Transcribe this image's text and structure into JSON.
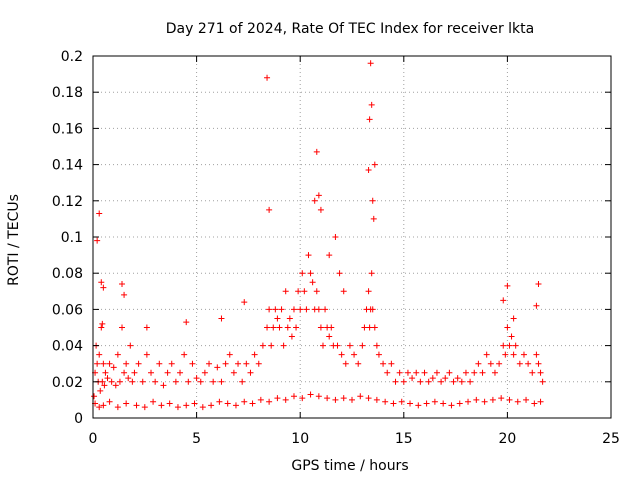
{
  "chart_data": {
    "type": "scatter",
    "title": "Day 271 of 2024, Rate Of TEC Index for receiver lkta",
    "xlabel": "GPS time / hours",
    "ylabel": "ROTI / TECUs",
    "xlim": [
      0,
      25
    ],
    "ylim": [
      0,
      0.2
    ],
    "xticks": [
      0,
      5,
      10,
      15,
      20,
      25
    ],
    "xtick_labels": [
      "0",
      "5",
      "10",
      "15",
      "20",
      "25"
    ],
    "yticks": [
      0,
      0.02,
      0.04,
      0.06,
      0.08,
      0.1,
      0.12,
      0.14,
      0.16,
      0.18,
      0.2
    ],
    "ytick_labels": [
      "0",
      "0.02",
      "0.04",
      "0.06",
      "0.08",
      "0.1",
      "0.12",
      "0.14",
      "0.16",
      "0.18",
      "0.2"
    ],
    "grid": true,
    "marker": "+",
    "color": "#ff0000",
    "series": [
      {
        "name": "ROTI",
        "x": [
          0.05,
          0.1,
          0.15,
          0.2,
          0.25,
          0.3,
          0.35,
          0.4,
          0.45,
          0.5,
          0.55,
          0.6,
          0.7,
          0.8,
          0.9,
          1.0,
          1.1,
          1.2,
          1.3,
          1.4,
          1.5,
          1.6,
          1.7,
          1.8,
          1.9,
          2.0,
          2.2,
          2.4,
          2.6,
          2.8,
          3.0,
          3.2,
          3.4,
          3.6,
          3.8,
          4.0,
          4.2,
          4.4,
          4.6,
          4.8,
          5.0,
          5.2,
          5.4,
          5.6,
          5.8,
          6.0,
          6.2,
          6.4,
          6.6,
          6.8,
          7.0,
          7.2,
          7.4,
          7.6,
          7.8,
          8.0,
          8.2,
          8.4,
          8.5,
          8.6,
          8.7,
          8.8,
          8.9,
          9.0,
          9.1,
          9.2,
          9.3,
          9.4,
          9.5,
          9.6,
          9.7,
          9.8,
          9.9,
          10.0,
          10.1,
          10.2,
          10.3,
          10.4,
          10.5,
          10.6,
          10.7,
          10.8,
          10.9,
          11.0,
          11.1,
          11.2,
          11.3,
          11.4,
          11.5,
          11.6,
          11.8,
          12.0,
          12.2,
          12.4,
          12.6,
          12.8,
          13.0,
          13.1,
          13.2,
          13.3,
          13.35,
          13.4,
          13.45,
          13.5,
          13.6,
          13.7,
          13.8,
          14.0,
          14.2,
          14.4,
          14.6,
          14.8,
          15.0,
          15.2,
          15.4,
          15.6,
          15.8,
          16.0,
          16.2,
          16.4,
          16.6,
          16.8,
          17.0,
          17.2,
          17.4,
          17.6,
          17.8,
          18.0,
          18.2,
          18.4,
          18.6,
          18.8,
          19.0,
          19.2,
          19.4,
          19.6,
          19.8,
          19.9,
          20.0,
          20.1,
          20.2,
          20.3,
          20.4,
          20.6,
          20.8,
          21.0,
          21.2,
          21.4,
          21.5,
          21.6,
          21.7,
          0.2,
          0.3,
          0.4,
          0.45,
          0.5,
          1.4,
          1.5,
          2.6,
          4.5,
          6.2,
          7.3,
          8.4,
          8.5,
          10.7,
          10.8,
          10.9,
          11.0,
          11.4,
          11.7,
          11.9,
          12.1,
          13.3,
          13.35,
          13.4,
          13.45,
          13.5,
          13.55,
          13.6,
          19.8,
          20.0,
          20.3,
          21.4,
          21.5,
          0.1,
          0.3,
          0.5,
          0.8,
          1.2,
          1.6,
          2.1,
          2.5,
          2.9,
          3.3,
          3.7,
          4.1,
          4.5,
          4.9,
          5.3,
          5.7,
          6.1,
          6.5,
          6.9,
          7.3,
          7.7,
          8.1,
          8.5,
          8.9,
          9.3,
          9.7,
          10.1,
          10.5,
          10.9,
          11.3,
          11.7,
          12.1,
          12.5,
          12.9,
          13.3,
          13.7,
          14.1,
          14.5,
          14.9,
          15.3,
          15.7,
          16.1,
          16.5,
          16.9,
          17.3,
          17.7,
          18.1,
          18.5,
          18.9,
          19.3,
          19.7,
          20.1,
          20.5,
          20.9,
          21.3,
          21.6
        ],
        "y": [
          0.012,
          0.025,
          0.04,
          0.03,
          0.02,
          0.035,
          0.015,
          0.05,
          0.02,
          0.03,
          0.018,
          0.025,
          0.022,
          0.03,
          0.02,
          0.028,
          0.018,
          0.035,
          0.02,
          0.05,
          0.025,
          0.03,
          0.022,
          0.04,
          0.02,
          0.025,
          0.03,
          0.02,
          0.035,
          0.025,
          0.02,
          0.03,
          0.018,
          0.025,
          0.03,
          0.02,
          0.025,
          0.035,
          0.02,
          0.03,
          0.022,
          0.02,
          0.025,
          0.03,
          0.02,
          0.028,
          0.02,
          0.03,
          0.035,
          0.025,
          0.03,
          0.02,
          0.03,
          0.025,
          0.035,
          0.03,
          0.04,
          0.05,
          0.06,
          0.04,
          0.05,
          0.06,
          0.055,
          0.05,
          0.06,
          0.04,
          0.07,
          0.05,
          0.055,
          0.045,
          0.06,
          0.05,
          0.07,
          0.06,
          0.08,
          0.07,
          0.06,
          0.09,
          0.08,
          0.075,
          0.06,
          0.07,
          0.06,
          0.05,
          0.04,
          0.06,
          0.05,
          0.045,
          0.05,
          0.04,
          0.04,
          0.035,
          0.03,
          0.04,
          0.035,
          0.03,
          0.04,
          0.05,
          0.06,
          0.07,
          0.05,
          0.06,
          0.08,
          0.06,
          0.05,
          0.04,
          0.035,
          0.03,
          0.025,
          0.03,
          0.02,
          0.025,
          0.02,
          0.025,
          0.022,
          0.025,
          0.02,
          0.025,
          0.02,
          0.022,
          0.025,
          0.02,
          0.022,
          0.025,
          0.02,
          0.022,
          0.02,
          0.025,
          0.02,
          0.025,
          0.03,
          0.025,
          0.035,
          0.03,
          0.025,
          0.03,
          0.04,
          0.035,
          0.05,
          0.04,
          0.045,
          0.035,
          0.04,
          0.03,
          0.035,
          0.03,
          0.025,
          0.035,
          0.03,
          0.025,
          0.02,
          0.098,
          0.113,
          0.075,
          0.052,
          0.072,
          0.074,
          0.068,
          0.05,
          0.053,
          0.055,
          0.064,
          0.188,
          0.115,
          0.12,
          0.147,
          0.123,
          0.115,
          0.09,
          0.1,
          0.08,
          0.07,
          0.137,
          0.165,
          0.196,
          0.173,
          0.12,
          0.11,
          0.14,
          0.065,
          0.073,
          0.055,
          0.062,
          0.074,
          0.008,
          0.006,
          0.007,
          0.009,
          0.006,
          0.008,
          0.007,
          0.006,
          0.009,
          0.007,
          0.008,
          0.006,
          0.007,
          0.008,
          0.006,
          0.007,
          0.009,
          0.008,
          0.007,
          0.009,
          0.008,
          0.01,
          0.009,
          0.011,
          0.01,
          0.012,
          0.011,
          0.013,
          0.012,
          0.011,
          0.01,
          0.011,
          0.01,
          0.012,
          0.011,
          0.01,
          0.009,
          0.008,
          0.009,
          0.008,
          0.007,
          0.008,
          0.009,
          0.008,
          0.007,
          0.008,
          0.009,
          0.01,
          0.009,
          0.01,
          0.011,
          0.01,
          0.009,
          0.01,
          0.008,
          0.009
        ]
      }
    ]
  }
}
